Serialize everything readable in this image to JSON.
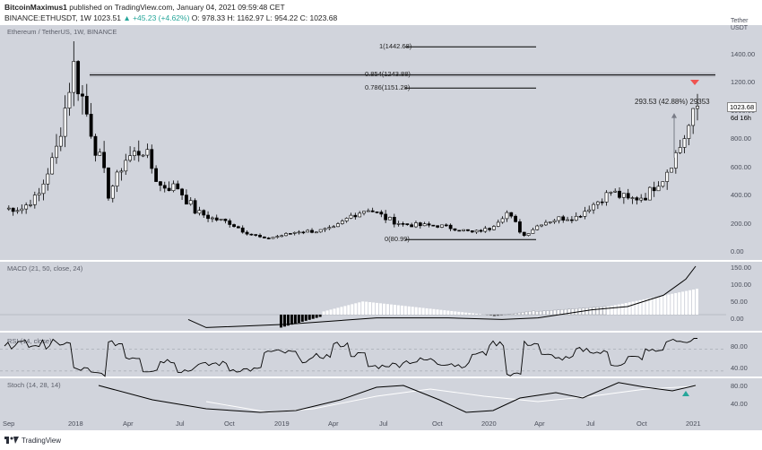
{
  "header": {
    "author": "BitcoinMaximus1",
    "published": "published on TradingView.com, January 04, 2021 09:59:48 CET",
    "symbol": "BINANCE:ETHUSDT, 1W",
    "price": "1023.51",
    "change": "▲ +45.23 (+4.62%)",
    "ohlc": "O: 978.33  H: 1162.97  L: 954.22  C: 1023.68"
  },
  "chart_title": "Ethereum / TetherUS, 1W, BINANCE",
  "currency_label": "Tether USDT",
  "fib_labels": [
    "1(1442.68)",
    "0.854(1243.88)",
    "0.786(1151.28)",
    "0(80.99)"
  ],
  "measure_label": "293.53 (42.88%) 29353",
  "last_price_tag": "1023.68",
  "countdown_tag": "6d 16h",
  "macd_title": "MACD (21, 50, close, 24)",
  "rsi_title": "RSI (14, close)",
  "stoch_title": "Stoch (14, 28, 14)",
  "price_axis": [
    "1400.00",
    "1200.00",
    "1000.00",
    "800.00",
    "600.00",
    "400.00",
    "200.00",
    "0.00"
  ],
  "macd_axis": [
    "150.00",
    "100.00",
    "50.00",
    "0.00"
  ],
  "rsi_axis": [
    "80.00",
    "40.00"
  ],
  "stoch_axis": [
    "80.00",
    "40.00"
  ],
  "time_axis": [
    "Sep",
    "2018",
    "Apr",
    "Jul",
    "Oct",
    "2019",
    "Apr",
    "Jul",
    "Oct",
    "2020",
    "Apr",
    "Jul",
    "Oct",
    "2021"
  ],
  "footer": "TradingView",
  "colors": {
    "panel": "#d1d4dc",
    "candle_up": "#ffffff",
    "candle_down": "#000000",
    "accent_up": "#26a69a",
    "accent_down": "#ef5350"
  },
  "chart_data": {
    "type": "line",
    "title": "Ethereum / TetherUS, 1W, BINANCE",
    "x": [
      "Sep 2017",
      "Oct 2017",
      "Nov 2017",
      "Dec 2017",
      "Jan 2018",
      "Feb 2018",
      "Mar 2018",
      "Apr 2018",
      "May 2018",
      "Jun 2018",
      "Jul 2018",
      "Aug 2018",
      "Sep 2018",
      "Oct 2018",
      "Nov 2018",
      "Dec 2018",
      "Jan 2019",
      "Feb 2019",
      "Mar 2019",
      "Apr 2019",
      "May 2019",
      "Jun 2019",
      "Jul 2019",
      "Aug 2019",
      "Sep 2019",
      "Oct 2019",
      "Nov 2019",
      "Dec 2019",
      "Jan 2020",
      "Feb 2020",
      "Mar 2020",
      "Apr 2020",
      "May 2020",
      "Jun 2020",
      "Jul 2020",
      "Aug 2020",
      "Sep 2020",
      "Oct 2020",
      "Nov 2020",
      "Dec 2020",
      "Jan 2021"
    ],
    "series": [
      {
        "values": [
          300,
          300,
          400,
          720,
          1300,
          860,
          400,
          650,
          720,
          460,
          450,
          280,
          230,
          200,
          130,
          85,
          110,
          140,
          140,
          160,
          250,
          300,
          230,
          190,
          180,
          180,
          160,
          130,
          160,
          270,
          110,
          200,
          230,
          240,
          330,
          420,
          360,
          390,
          520,
          740,
          1023.68
        ]
      }
    ],
    "ylim": [
      0,
      1500
    ],
    "fib_levels": [
      {
        "ratio": 1,
        "value": 1442.68
      },
      {
        "ratio": 0.854,
        "value": 1243.88
      },
      {
        "ratio": 0.786,
        "value": 1151.28
      },
      {
        "ratio": 0,
        "value": 80.99
      }
    ],
    "last_price": 1023.68,
    "macd": {
      "params": "21, 50, close, 24",
      "ylim": [
        -60,
        160
      ],
      "last": 150
    },
    "rsi": {
      "params": "14, close",
      "ylim": [
        20,
        100
      ],
      "last": 90
    },
    "stoch": {
      "params": "14, 28, 14",
      "ylim": [
        0,
        100
      ],
      "last": 80
    }
  }
}
